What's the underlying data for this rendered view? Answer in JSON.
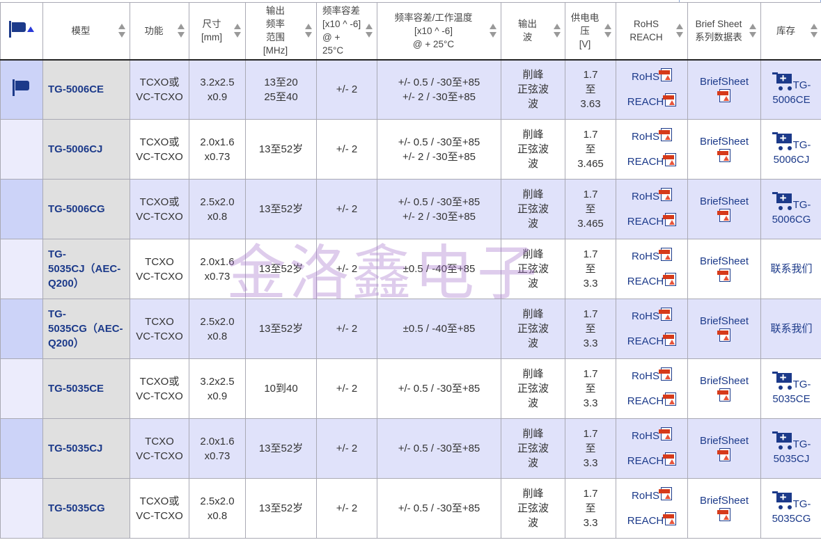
{
  "headers": [
    "模型",
    "功能",
    "尺寸\n[mm]",
    "输出\n频率\n范围\n[MHz]",
    "频率容差\n[x10 ^ -6]\n@ + 25°C",
    "频率容差/工作温度\n[x10 ^ -6]\n@ + 25°C",
    "输出\n波",
    "供电电\n压\n[V]",
    "RoHS\nREACH",
    "Brief Sheet\n系列数据表",
    "库存"
  ],
  "rohs_label": "RoHS",
  "reach_label": "REACH",
  "brief_label": "BriefSheet",
  "watermark": "金洛鑫电子",
  "rows": [
    {
      "model": "TG-5006CE",
      "func": "TCXO或\nVC-TCXO",
      "size": "3.2x2.5\nx0.9",
      "freq": "13至20\n25至40",
      "tol": "+/- 2",
      "temp": "+/- 0.5 / -30至+85\n+/- 2 / -30至+85",
      "wave": "削峰\n正弦波\n波",
      "volt": "1.7\n至\n3.63",
      "stock": "TG-\n5006CE",
      "cart": true,
      "flag": true
    },
    {
      "model": "TG-5006CJ",
      "func": "TCXO或\nVC-TCXO",
      "size": "2.0x1.6\nx0.73",
      "freq": "13至52岁",
      "tol": "+/- 2",
      "temp": "+/- 0.5 / -30至+85\n+/- 2 / -30至+85",
      "wave": "削峰\n正弦波\n波",
      "volt": "1.7\n至\n3.465",
      "stock": "TG-\n5006CJ",
      "cart": true
    },
    {
      "model": "TG-5006CG",
      "func": "TCXO或\nVC-TCXO",
      "size": "2.5x2.0\nx0.8",
      "freq": "13至52岁",
      "tol": "+/- 2",
      "temp": "+/- 0.5 / -30至+85\n+/- 2 / -30至+85",
      "wave": "削峰\n正弦波\n波",
      "volt": "1.7\n至\n3.465",
      "stock": "TG-\n5006CG",
      "cart": true
    },
    {
      "model": "TG-\n5035CJ（AEC-\nQ200）",
      "func": "TCXO\nVC-TCXO",
      "size": "2.0x1.6\nx0.73",
      "freq": "13至52岁",
      "tol": "+/- 2",
      "temp": "±0.5 / -40至+85",
      "wave": "削峰\n正弦波\n波",
      "volt": "1.7\n至\n3.3",
      "stock": "联系我们",
      "cart": false
    },
    {
      "model": "TG-\n5035CG（AEC-\nQ200）",
      "func": "TCXO\nVC-TCXO",
      "size": "2.5x2.0\nx0.8",
      "freq": "13至52岁",
      "tol": "+/- 2",
      "temp": "±0.5 / -40至+85",
      "wave": "削峰\n正弦波\n波",
      "volt": "1.7\n至\n3.3",
      "stock": "联系我们",
      "cart": false
    },
    {
      "model": "TG-5035CE",
      "func": "TCXO或\nVC-TCXO",
      "size": "3.2x2.5\nx0.9",
      "freq": "10到40",
      "tol": "+/- 2",
      "temp": "+/- 0.5 / -30至+85",
      "wave": "削峰\n正弦波\n波",
      "volt": "1.7\n至\n3.3",
      "stock": "TG-\n5035CE",
      "cart": true
    },
    {
      "model": "TG-5035CJ",
      "func": "TCXO\nVC-TCXO",
      "size": "2.0x1.6\nx0.73",
      "freq": "13至52岁",
      "tol": "+/- 2",
      "temp": "+/- 0.5 / -30至+85",
      "wave": "削峰\n正弦波\n波",
      "volt": "1.7\n至\n3.3",
      "stock": "TG-\n5035CJ",
      "cart": true
    },
    {
      "model": "TG-5035CG",
      "func": "TCXO或\nVC-TCXO",
      "size": "2.5x2.0\nx0.8",
      "freq": "13至52岁",
      "tol": "+/- 2",
      "temp": "+/- 0.5 / -30至+85",
      "wave": "削峰\n正弦波\n波",
      "volt": "1.7\n至\n3.3",
      "stock": "TG-\n5035CG",
      "cart": true
    }
  ]
}
